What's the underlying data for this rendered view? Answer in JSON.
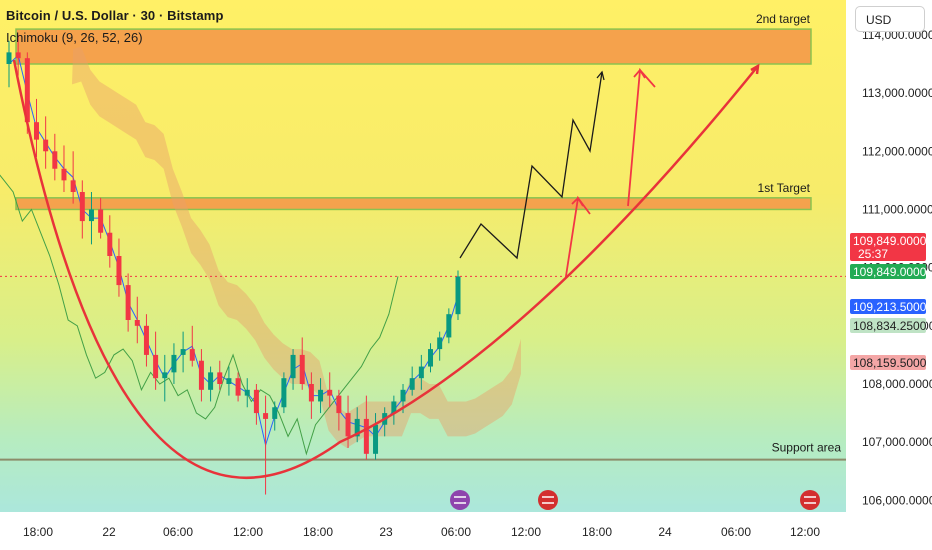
{
  "header": {
    "title": "Bitcoin / U.S. Dollar · 30 · Bitstamp",
    "indicator": "Ichimoku (9, 26, 52, 26)",
    "currency": "USD"
  },
  "chart_data": {
    "type": "candlestick",
    "ylim": [
      105800,
      114600
    ],
    "y_ticks": [
      106000,
      107000,
      108000,
      109000,
      110000,
      111000,
      112000,
      113000,
      114000
    ],
    "y_tick_labels": [
      "106,000.0000",
      "107,000.0000",
      "108,000.0000",
      "109,000.0000",
      "110,000.0000",
      "111,000.0000",
      "112,000.0000",
      "113,000.0000",
      "114,000.0000"
    ],
    "x_ticks": [
      "18:00",
      "22",
      "06:00",
      "12:00",
      "18:00",
      "23",
      "06:00",
      "12:00",
      "18:00",
      "24",
      "06:00",
      "12:00"
    ],
    "candles": [
      [
        113500,
        113900,
        113100,
        113700
      ],
      [
        113700,
        114000,
        113300,
        113600
      ],
      [
        113600,
        113700,
        112300,
        112500
      ],
      [
        112500,
        112900,
        111900,
        112200
      ],
      [
        112200,
        112600,
        111700,
        112000
      ],
      [
        112000,
        112300,
        111500,
        111700
      ],
      [
        111700,
        112100,
        111300,
        111500
      ],
      [
        111500,
        112000,
        111100,
        111300
      ],
      [
        111300,
        111500,
        110500,
        110800
      ],
      [
        110800,
        111300,
        110400,
        111000
      ],
      [
        111000,
        111200,
        110500,
        110600
      ],
      [
        110600,
        110900,
        110000,
        110200
      ],
      [
        110200,
        110500,
        109500,
        109700
      ],
      [
        109700,
        109900,
        108900,
        109100
      ],
      [
        109100,
        109500,
        108700,
        109000
      ],
      [
        109000,
        109200,
        108300,
        108500
      ],
      [
        108500,
        108900,
        107900,
        108100
      ],
      [
        108100,
        108500,
        107700,
        108200
      ],
      [
        108200,
        108700,
        108000,
        108500
      ],
      [
        108500,
        108900,
        108200,
        108600
      ],
      [
        108600,
        109000,
        108300,
        108400
      ],
      [
        108400,
        108600,
        107700,
        107900
      ],
      [
        107900,
        108300,
        107700,
        108200
      ],
      [
        108200,
        108400,
        107900,
        108000
      ],
      [
        108000,
        108300,
        107800,
        108100
      ],
      [
        108100,
        108200,
        107700,
        107800
      ],
      [
        107800,
        108100,
        107600,
        107900
      ],
      [
        107900,
        108000,
        107300,
        107500
      ],
      [
        107500,
        107800,
        106100,
        107400
      ],
      [
        107400,
        107700,
        107200,
        107600
      ],
      [
        107600,
        108200,
        107500,
        108100
      ],
      [
        108100,
        108600,
        107900,
        108500
      ],
      [
        108500,
        108800,
        107900,
        108000
      ],
      [
        108000,
        108200,
        107400,
        107700
      ],
      [
        107700,
        108100,
        107500,
        107900
      ],
      [
        107900,
        108200,
        107600,
        107800
      ],
      [
        107800,
        107900,
        107200,
        107500
      ],
      [
        107500,
        107800,
        106900,
        107100
      ],
      [
        107100,
        107600,
        107000,
        107400
      ],
      [
        107400,
        107800,
        106700,
        106800
      ],
      [
        106800,
        107500,
        106700,
        107300
      ],
      [
        107300,
        107600,
        107100,
        107500
      ],
      [
        107500,
        107800,
        107300,
        107700
      ],
      [
        107700,
        108000,
        107500,
        107900
      ],
      [
        107900,
        108300,
        107800,
        108100
      ],
      [
        108100,
        108500,
        107900,
        108300
      ],
      [
        108300,
        108700,
        108200,
        108600
      ],
      [
        108600,
        108900,
        108400,
        108800
      ],
      [
        108800,
        109300,
        108700,
        109200
      ],
      [
        109200,
        109950,
        109100,
        109849
      ]
    ],
    "targets": [
      {
        "label": "2nd target",
        "low": 113500,
        "high": 114100
      },
      {
        "label": "1st Target",
        "low": 111000,
        "high": 111200
      }
    ],
    "support": {
      "label": "Support area",
      "value": 106700
    },
    "price_tags": [
      {
        "label": "109,849.0000",
        "sub": "25:37",
        "color": "#f23645"
      },
      {
        "label": "109,849.0000",
        "color": "#22ab54"
      },
      {
        "label": "109,213.5000",
        "color": "#2962ff"
      },
      {
        "label": "108,834.2500",
        "color": "#bfe3c5"
      },
      {
        "label": "108,159.5000",
        "color": "#f4a6a6"
      }
    ],
    "projection": [
      [
        109900,
        110000
      ],
      [
        110100,
        111200
      ],
      [
        110450,
        110700
      ],
      [
        110900,
        112200
      ],
      [
        111200,
        111900
      ],
      [
        111750,
        113100
      ],
      [
        111950,
        112400
      ],
      [
        112550,
        113800
      ]
    ],
    "event_icons": [
      "flash-icon",
      "us-flag-icon",
      "us-flag-icon"
    ],
    "colors": {
      "up": "#089981",
      "down": "#f23645",
      "curve": "#e8333a",
      "target_band": "#f59a4a",
      "support_line": "#8c8c6a"
    }
  }
}
